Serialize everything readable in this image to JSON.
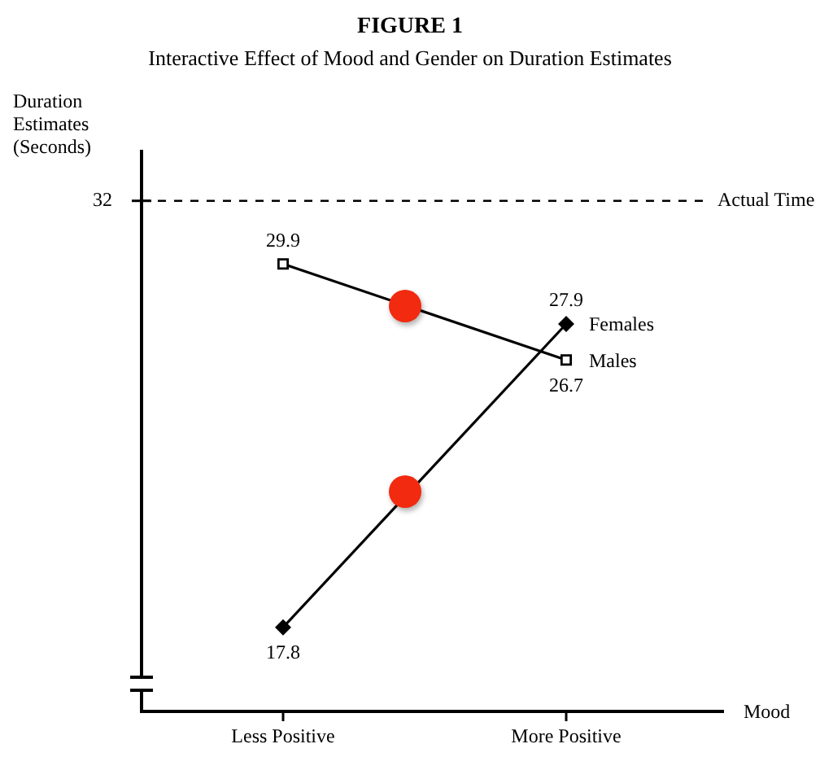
{
  "chart_data": {
    "type": "line",
    "title": "FIGURE 1",
    "subtitle": "Interactive Effect of Mood and Gender on Duration Estimates",
    "xlabel": "Mood",
    "ylabel": "Duration Estimates (Seconds)",
    "categories": [
      "Less Positive",
      "More Positive"
    ],
    "series": [
      {
        "name": "Males",
        "color": "#000000",
        "marker": "square",
        "values": [
          29.9,
          26.7
        ]
      },
      {
        "name": "Females",
        "color": "#000000",
        "marker": "diamond",
        "values": [
          17.8,
          27.9
        ]
      }
    ],
    "ylim": [
      15,
      33.7
    ],
    "annotations": [
      "32"
    ],
    "grid": false,
    "legend": false,
    "data_labels": true,
    "ref_lines": [
      {
        "axis": "y",
        "value": 32,
        "label": "Actual Time",
        "line_style": "dashed",
        "color": "#000000"
      }
    ]
  }
}
